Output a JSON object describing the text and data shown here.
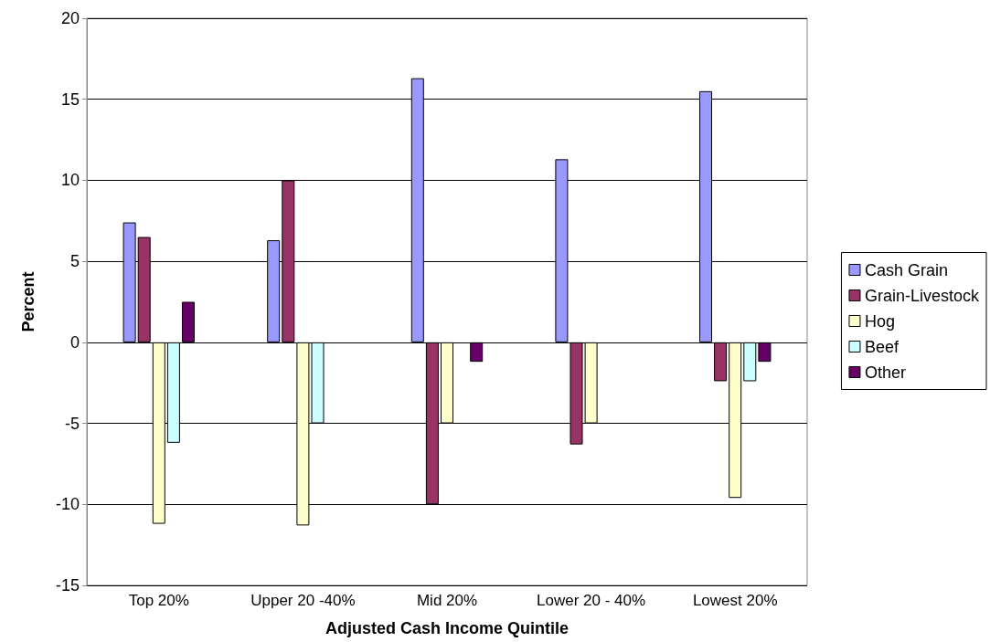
{
  "chart_data": {
    "type": "bar",
    "xlabel": "Adjusted Cash Income Quintile",
    "ylabel": "Percent",
    "categories": [
      "Top 20%",
      "Upper 20 -40%",
      "Mid 20%",
      "Lower 20 - 40%",
      "Lowest 20%"
    ],
    "series": [
      {
        "name": "Cash Grain",
        "color": "#9999ff",
        "values": [
          7.4,
          6.3,
          16.3,
          11.3,
          15.5
        ]
      },
      {
        "name": "Grain-Livestock",
        "color": "#993366",
        "values": [
          6.5,
          10.0,
          -10.0,
          -6.3,
          -2.4
        ]
      },
      {
        "name": "Hog",
        "color": "#ffffcc",
        "values": [
          -11.2,
          -11.3,
          -5.0,
          -5.0,
          -9.6
        ]
      },
      {
        "name": "Beef",
        "color": "#ccffff",
        "values": [
          -6.2,
          -5.0,
          null,
          null,
          -2.4
        ]
      },
      {
        "name": "Other",
        "color": "#660066",
        "values": [
          2.5,
          null,
          -1.2,
          null,
          -1.2
        ]
      }
    ],
    "ylim": [
      -15,
      20
    ],
    "yticks": [
      -15,
      -10,
      -5,
      0,
      5,
      10,
      15,
      20
    ],
    "grid": "y",
    "legend": "right"
  }
}
